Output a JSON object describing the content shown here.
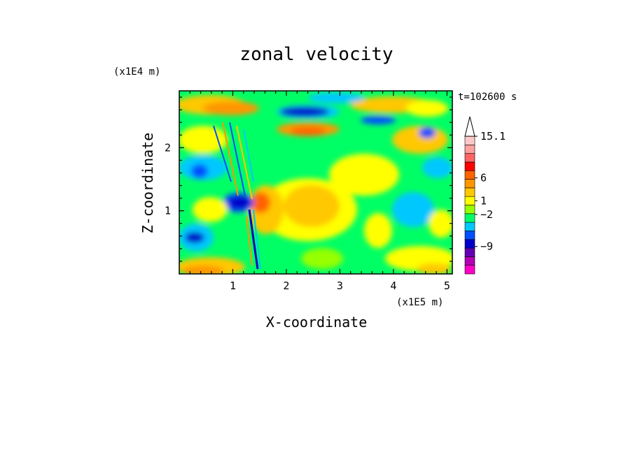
{
  "chart_data": {
    "type": "heatmap",
    "title": "zonal velocity",
    "xlabel": "X-coordinate",
    "ylabel": "Z-coordinate",
    "x_unit": "(x1E5 m)",
    "y_unit": "(x1E4 m)",
    "time_label": "t=102600 s",
    "xlim": [
      0,
      5.1
    ],
    "ylim": [
      0,
      2.9
    ],
    "x_ticks": [
      1,
      2,
      3,
      4,
      5
    ],
    "y_ticks": [
      1,
      2
    ],
    "colorbar": {
      "labels": [
        {
          "value": 15.1,
          "text": "15.1"
        },
        {
          "value": 6,
          "text": "6"
        },
        {
          "value": 1,
          "text": "1"
        },
        {
          "value": -2,
          "text": "−2"
        },
        {
          "value": -9,
          "text": "−9"
        }
      ],
      "levels": [
        {
          "color": "#ff00c8"
        },
        {
          "color": "#b400b4"
        },
        {
          "color": "#6400b4"
        },
        {
          "color": "#0000c8"
        },
        {
          "color": "#0050ff"
        },
        {
          "color": "#00c8ff"
        },
        {
          "color": "#00ff64"
        },
        {
          "color": "#96ff00"
        },
        {
          "color": "#ffff00"
        },
        {
          "color": "#ffc800"
        },
        {
          "color": "#ff9600"
        },
        {
          "color": "#ff6400"
        },
        {
          "color": "#ff0000"
        },
        {
          "color": "#ff6464"
        },
        {
          "color": "#ffa0a0"
        },
        {
          "color": "#ffc8c8"
        }
      ]
    }
  }
}
